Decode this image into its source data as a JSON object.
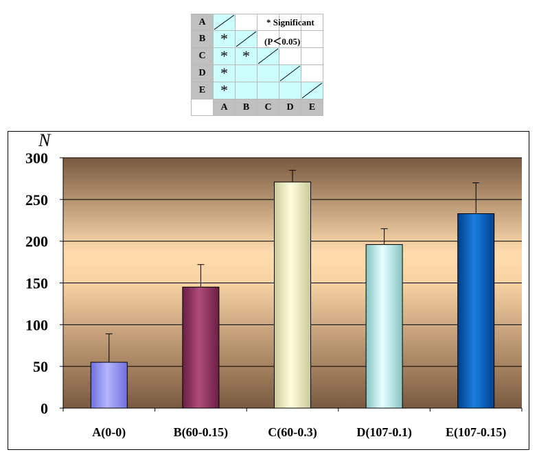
{
  "significance_table": {
    "rows": [
      "A",
      "B",
      "C",
      "D",
      "E"
    ],
    "cols": [
      "A",
      "B",
      "C",
      "D",
      "E"
    ],
    "marks": [
      [
        "/",
        "",
        "",
        "",
        ""
      ],
      [
        "*",
        "/",
        "",
        "",
        ""
      ],
      [
        "*",
        "*",
        "/",
        "",
        ""
      ],
      [
        "*",
        "",
        "",
        "/",
        ""
      ],
      [
        "*",
        "",
        "",
        "",
        "/"
      ]
    ],
    "legend_symbol": "*",
    "legend_label": "Significant",
    "legend_p": "(P＜0.05)"
  },
  "chart_data": {
    "type": "bar",
    "ylabel": "N",
    "categories": [
      "A(0-0)",
      "B(60-0.15)",
      "C(60-0.3)",
      "D(107-0.1)",
      "E(107-0.15)"
    ],
    "values": [
      55,
      145,
      271,
      196,
      233
    ],
    "errors": [
      34,
      27,
      14,
      19,
      37
    ],
    "ylim": [
      0,
      300
    ],
    "yticks": [
      "0",
      "50",
      "100",
      "150",
      "200",
      "250",
      "300"
    ],
    "grid": true,
    "colors": [
      "#9999ff",
      "#993366",
      "#ffffcc",
      "#ccffff",
      "#0066cc"
    ]
  }
}
